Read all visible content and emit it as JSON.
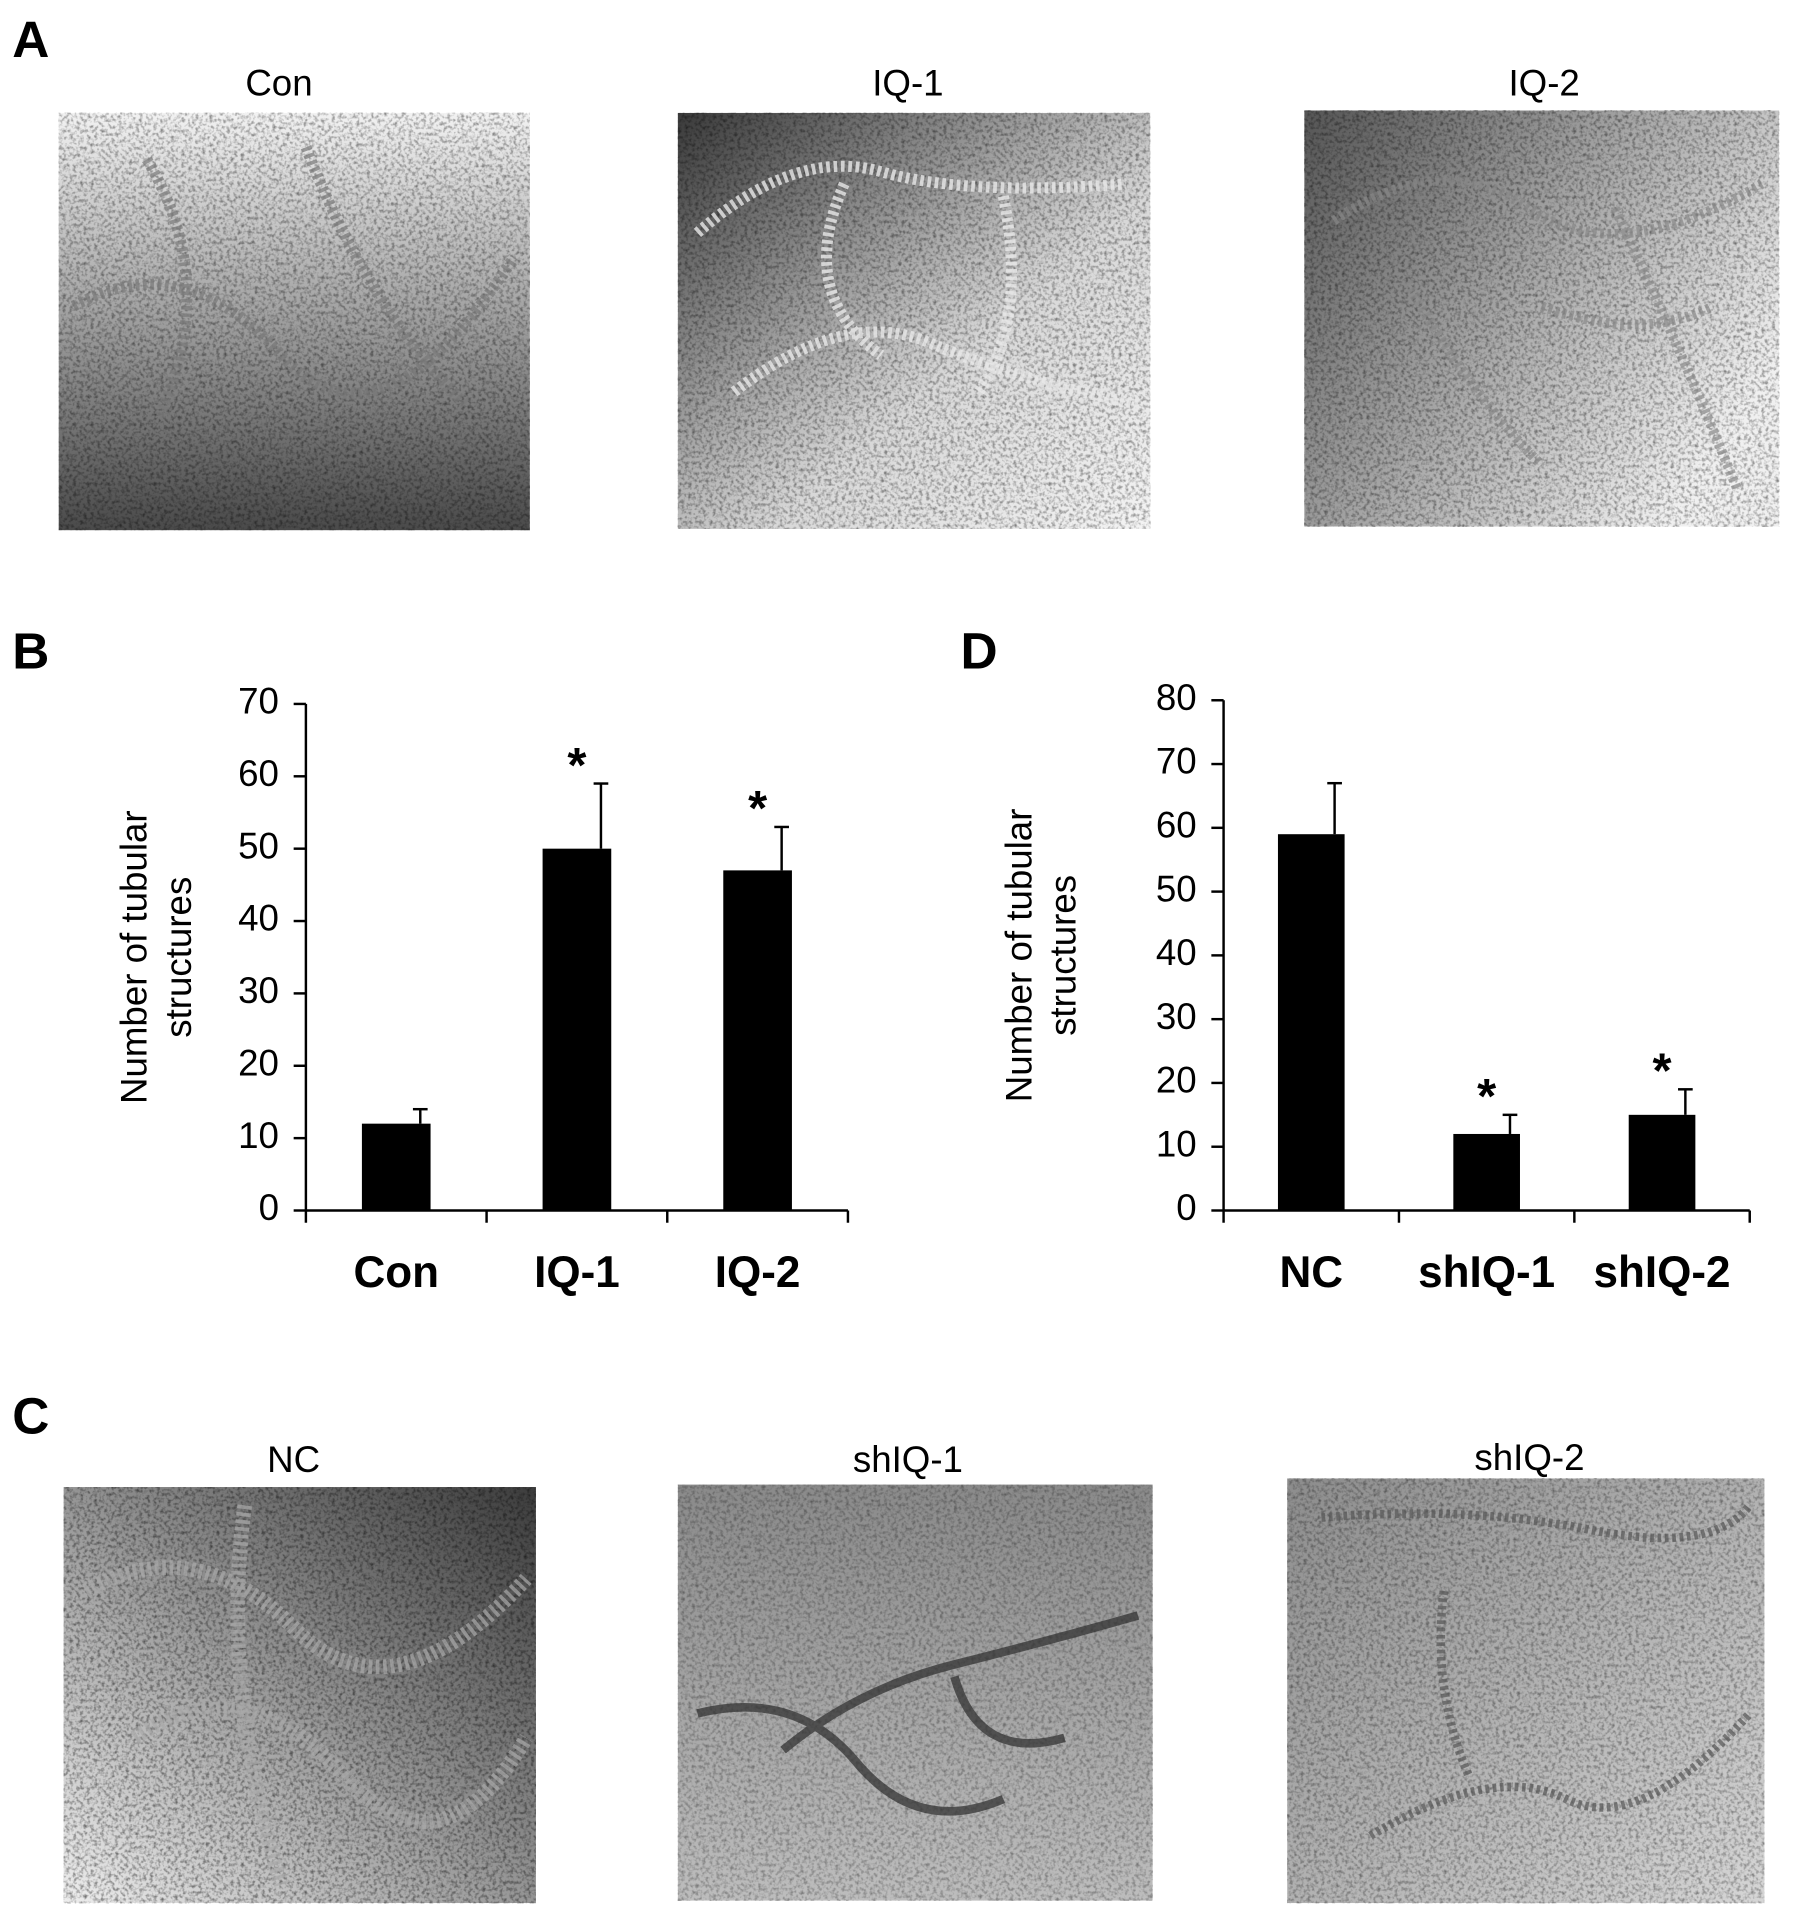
{
  "panels": {
    "A": {
      "label": "A",
      "captions": [
        "Con",
        "IQ-1",
        "IQ-2"
      ]
    },
    "C": {
      "label": "C",
      "captions": [
        "NC",
        "shIQ-1",
        "shIQ-2"
      ]
    }
  },
  "chart_data": [
    {
      "type": "bar",
      "panel_label": "B",
      "ylabel": [
        "Number of tubular",
        "structures"
      ],
      "categories": [
        "Con",
        "IQ-1",
        "IQ-2"
      ],
      "values": [
        12,
        50,
        47
      ],
      "errors": [
        2,
        9,
        6
      ],
      "annotations": [
        null,
        "*",
        "*"
      ],
      "color": "#000000",
      "ylim": [
        0,
        70
      ],
      "yticks": [
        0,
        10,
        20,
        30,
        40,
        50,
        60,
        70
      ]
    },
    {
      "type": "bar",
      "panel_label": "D",
      "ylabel": [
        "Number of tubular",
        "structures"
      ],
      "categories": [
        "NC",
        "shIQ-1",
        "shIQ-2"
      ],
      "values": [
        59,
        12,
        15
      ],
      "errors": [
        8,
        3,
        4
      ],
      "annotations": [
        null,
        "*",
        "*"
      ],
      "color": "#000000",
      "ylim": [
        0,
        80
      ],
      "yticks": [
        0,
        10,
        20,
        30,
        40,
        50,
        60,
        70,
        80
      ]
    }
  ]
}
